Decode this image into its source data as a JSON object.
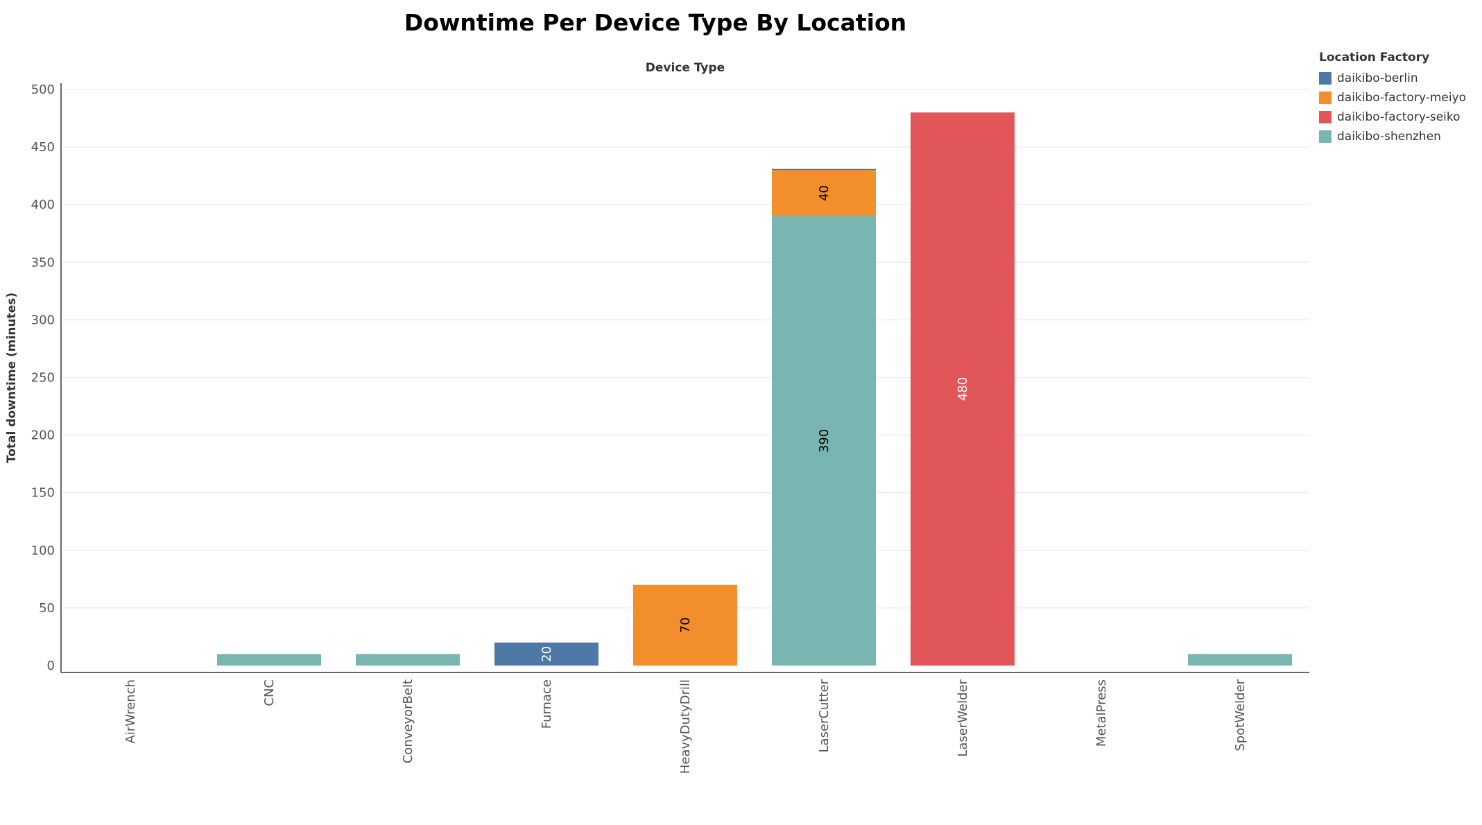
{
  "chart_data": {
    "type": "bar",
    "stacked": true,
    "title": "Downtime Per Device Type By Location",
    "xlabel": "Device Type",
    "ylabel": "Total downtime (minutes)",
    "ylim": [
      0,
      500
    ],
    "yticks": [
      0,
      50,
      100,
      150,
      200,
      250,
      300,
      350,
      400,
      450,
      500
    ],
    "grid": true,
    "legend_title": "Location Factory",
    "legend_position": "top-right",
    "categories": [
      "AirWrench",
      "CNC",
      "ConveyorBelt",
      "Furnace",
      "HeavyDutyDrill",
      "LaserCutter",
      "LaserWelder",
      "MetalPress",
      "SpotWelder"
    ],
    "series": [
      {
        "name": "daikibo-shenzhen",
        "color": "#79b6b1",
        "values": [
          0,
          10,
          10,
          0,
          0,
          390,
          0,
          0,
          10
        ]
      },
      {
        "name": "daikibo-factory-meiyo",
        "color": "#f28e2b",
        "values": [
          0,
          0,
          0,
          0,
          70,
          40,
          0,
          0,
          0
        ]
      },
      {
        "name": "daikibo-factory-seiko",
        "color": "#e15759",
        "values": [
          0,
          0,
          0,
          0,
          0,
          0,
          480,
          0,
          0
        ]
      },
      {
        "name": "daikibo-berlin",
        "color": "#4e79a7",
        "values": [
          0,
          0,
          0,
          20,
          0,
          1,
          0,
          0,
          0
        ]
      }
    ],
    "legend_order": [
      "daikibo-berlin",
      "daikibo-factory-meiyo",
      "daikibo-factory-seiko",
      "daikibo-shenzhen"
    ],
    "data_labels": [
      {
        "category": "Furnace",
        "series": "daikibo-berlin",
        "text": "20",
        "color": "#ffffff"
      },
      {
        "category": "HeavyDutyDrill",
        "series": "daikibo-factory-meiyo",
        "text": "70",
        "color": "#000000"
      },
      {
        "category": "LaserCutter",
        "series": "daikibo-shenzhen",
        "text": "390",
        "color": "#000000"
      },
      {
        "category": "LaserCutter",
        "series": "daikibo-factory-meiyo",
        "text": "40",
        "color": "#000000"
      },
      {
        "category": "LaserWelder",
        "series": "daikibo-factory-seiko",
        "text": "480",
        "color": "#ffffff"
      }
    ]
  }
}
